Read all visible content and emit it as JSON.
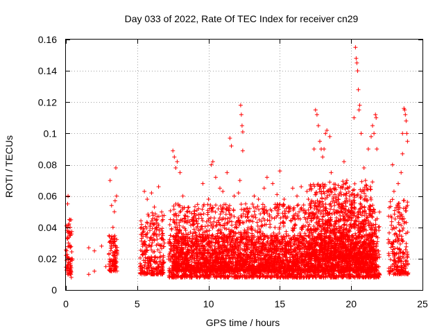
{
  "chart_data": {
    "type": "scatter",
    "title": "Day 033 of 2022, Rate Of TEC Index for receiver cn29",
    "xlabel": "GPS time / hours",
    "ylabel": "ROTI / TECUs",
    "xlim": [
      0,
      25
    ],
    "ylim": [
      0,
      0.16
    ],
    "x_ticks": [
      0,
      5,
      10,
      15,
      20,
      25
    ],
    "x_tick_labels": [
      "0",
      "5",
      "10",
      "15",
      "20",
      "25"
    ],
    "y_ticks": [
      0,
      0.02,
      0.04,
      0.06,
      0.08,
      0.1,
      0.12,
      0.14,
      0.16
    ],
    "y_tick_labels": [
      "0",
      "0.02",
      "0.04",
      "0.06",
      "0.08",
      "0.1",
      "0.12",
      "0.14",
      "0.16"
    ],
    "grid": true,
    "marker": "+",
    "marker_color": "#ff0000",
    "series": [
      {
        "name": "ROTI",
        "points": [
          [
            0.05,
            0.025
          ],
          [
            0.1,
            0.04
          ],
          [
            0.12,
            0.055
          ],
          [
            0.15,
            0.06
          ],
          [
            0.18,
            0.03
          ],
          [
            0.2,
            0.02
          ],
          [
            0.25,
            0.045
          ],
          [
            0.28,
            0.035
          ],
          [
            0.3,
            0.015
          ],
          [
            0.35,
            0.01
          ],
          [
            0.38,
            0.008
          ],
          [
            0.4,
            0.02
          ],
          [
            1.6,
            0.01
          ],
          [
            1.6,
            0.027
          ],
          [
            2.0,
            0.025
          ],
          [
            2.0,
            0.012
          ],
          [
            2.5,
            0.028
          ],
          [
            2.8,
            0.015
          ],
          [
            3.1,
            0.07
          ],
          [
            3.2,
            0.054
          ],
          [
            3.3,
            0.04
          ],
          [
            3.35,
            0.03
          ],
          [
            3.4,
            0.05
          ],
          [
            3.45,
            0.057
          ],
          [
            3.5,
            0.078
          ],
          [
            3.5,
            0.02
          ],
          [
            3.55,
            0.06
          ],
          [
            3.6,
            0.025
          ],
          [
            5.3,
            0.04
          ],
          [
            5.5,
            0.063
          ],
          [
            5.7,
            0.058
          ],
          [
            6.0,
            0.062
          ],
          [
            6.2,
            0.053
          ],
          [
            6.5,
            0.066
          ],
          [
            6.8,
            0.045
          ],
          [
            6.9,
            0.03
          ],
          [
            7.5,
            0.089
          ],
          [
            7.6,
            0.085
          ],
          [
            7.7,
            0.078
          ],
          [
            7.8,
            0.082
          ],
          [
            8.0,
            0.075
          ],
          [
            8.2,
            0.06
          ],
          [
            8.5,
            0.05
          ],
          [
            8.8,
            0.045
          ],
          [
            9.3,
            0.052
          ],
          [
            9.6,
            0.068
          ],
          [
            10.0,
            0.058
          ],
          [
            10.2,
            0.08
          ],
          [
            10.3,
            0.082
          ],
          [
            10.5,
            0.072
          ],
          [
            10.8,
            0.065
          ],
          [
            11.0,
            0.063
          ],
          [
            11.3,
            0.075
          ],
          [
            11.5,
            0.097
          ],
          [
            11.6,
            0.092
          ],
          [
            11.8,
            0.06
          ],
          [
            12.1,
            0.062
          ],
          [
            12.2,
            0.07
          ],
          [
            12.25,
            0.118
          ],
          [
            12.3,
            0.112
          ],
          [
            12.35,
            0.105
          ],
          [
            12.4,
            0.101
          ],
          [
            12.4,
            0.089
          ],
          [
            12.6,
            0.055
          ],
          [
            13.2,
            0.06
          ],
          [
            13.5,
            0.058
          ],
          [
            13.9,
            0.065
          ],
          [
            14.1,
            0.072
          ],
          [
            14.5,
            0.068
          ],
          [
            14.8,
            0.061
          ],
          [
            15.0,
            0.076
          ],
          [
            15.3,
            0.058
          ],
          [
            15.9,
            0.065
          ],
          [
            16.2,
            0.06
          ],
          [
            16.5,
            0.066
          ],
          [
            16.9,
            0.063
          ],
          [
            17.0,
            0.058
          ],
          [
            17.2,
            0.064
          ],
          [
            17.4,
            0.09
          ],
          [
            17.5,
            0.115
          ],
          [
            17.6,
            0.112
          ],
          [
            17.7,
            0.105
          ],
          [
            17.8,
            0.095
          ],
          [
            17.9,
            0.09
          ],
          [
            18.0,
            0.085
          ],
          [
            18.1,
            0.09
          ],
          [
            18.2,
            0.1
          ],
          [
            18.3,
            0.102
          ],
          [
            18.5,
            0.098
          ],
          [
            18.6,
            0.075
          ],
          [
            18.8,
            0.065
          ],
          [
            19.1,
            0.06
          ],
          [
            19.3,
            0.05
          ],
          [
            19.5,
            0.082
          ],
          [
            19.7,
            0.07
          ],
          [
            19.9,
            0.06
          ],
          [
            20.2,
            0.11
          ],
          [
            20.3,
            0.155
          ],
          [
            20.35,
            0.148
          ],
          [
            20.4,
            0.145
          ],
          [
            20.45,
            0.14
          ],
          [
            20.5,
            0.128
          ],
          [
            20.55,
            0.115
          ],
          [
            20.6,
            0.118
          ],
          [
            20.7,
            0.1
          ],
          [
            20.9,
            0.078
          ],
          [
            21.0,
            0.07
          ],
          [
            21.2,
            0.09
          ],
          [
            21.4,
            0.098
          ],
          [
            21.5,
            0.105
          ],
          [
            21.6,
            0.1
          ],
          [
            21.7,
            0.112
          ],
          [
            21.75,
            0.11
          ],
          [
            21.8,
            0.09
          ],
          [
            22.9,
            0.08
          ],
          [
            23.0,
            0.063
          ],
          [
            23.3,
            0.068
          ],
          [
            23.5,
            0.075
          ],
          [
            23.6,
            0.1
          ],
          [
            23.7,
            0.116
          ],
          [
            23.75,
            0.115
          ],
          [
            23.8,
            0.112
          ],
          [
            23.85,
            0.108
          ],
          [
            23.9,
            0.1
          ],
          [
            23.95,
            0.095
          ],
          [
            23.6,
            0.087
          ]
        ],
        "bands": [
          {
            "x": [
              0.0,
              0.45
            ],
            "y": [
              0.01,
              0.045
            ]
          },
          {
            "x": [
              3.0,
              3.6
            ],
            "y": [
              0.012,
              0.035
            ]
          },
          {
            "x": [
              5.2,
              6.9
            ],
            "y": [
              0.01,
              0.05
            ]
          },
          {
            "x": [
              7.2,
              22.0
            ],
            "y": [
              0.008,
              0.055
            ]
          },
          {
            "x": [
              7.5,
              21.8
            ],
            "y": [
              0.012,
              0.035
            ]
          },
          {
            "x": [
              17.0,
              21.5
            ],
            "y": [
              0.02,
              0.07
            ]
          },
          {
            "x": [
              22.6,
              24.0
            ],
            "y": [
              0.01,
              0.058
            ]
          }
        ]
      }
    ]
  }
}
